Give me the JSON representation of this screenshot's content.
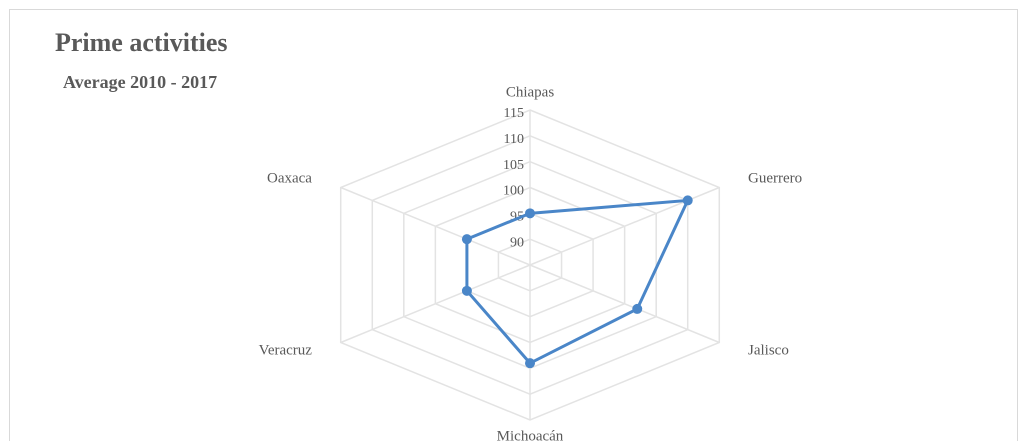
{
  "chart_data": {
    "type": "radar",
    "title": "Prime activities",
    "subtitle": "Average 2010 - 2017",
    "categories": [
      "Chiapas",
      "Guerrero",
      "Jalisco",
      "Michoacán",
      "Veracruz",
      "Oaxaca"
    ],
    "series": [
      {
        "name": "Prime activities",
        "color": "#4a86c8",
        "values": [
          95,
          110,
          102,
          104,
          95,
          95
        ]
      }
    ],
    "ylim": [
      85,
      115
    ],
    "yticks": [
      90,
      95,
      100,
      105,
      110,
      115
    ],
    "grid": true
  }
}
